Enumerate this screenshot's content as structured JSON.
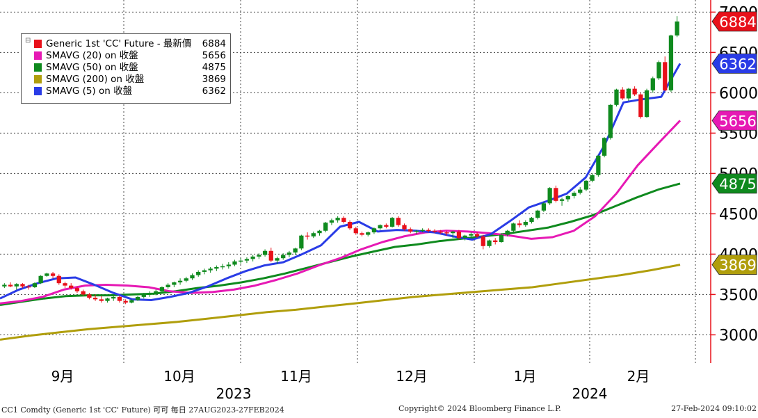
{
  "chart_data": {
    "type": "candlestick",
    "ylim": [
      2650,
      7150
    ],
    "y_ticks": [
      3000,
      3500,
      4000,
      4500,
      5000,
      5500,
      6000,
      6500,
      7000
    ],
    "y_tick_labels": [
      "3000",
      "3500",
      "4000",
      "4500",
      "5000",
      "5500",
      "6000",
      "6500",
      "7000"
    ],
    "x_month_labels": [
      "9月",
      "10月",
      "11月",
      "12月",
      "1月",
      "2月"
    ],
    "x_year_labels": [
      "2023",
      "2024"
    ],
    "grid": true,
    "legend_position": "top-left",
    "series": [
      {
        "name": "Generic 1st 'CC' Future - 最新價",
        "color": "#e8101a",
        "last_value": "6884",
        "candles": [
          [
            3600,
            3640,
            3580,
            3620
          ],
          [
            3620,
            3650,
            3590,
            3600
          ],
          [
            3600,
            3640,
            3560,
            3630
          ],
          [
            3630,
            3640,
            3580,
            3600
          ],
          [
            3600,
            3620,
            3560,
            3590
          ],
          [
            3590,
            3650,
            3580,
            3640
          ],
          [
            3640,
            3740,
            3630,
            3730
          ],
          [
            3730,
            3770,
            3720,
            3760
          ],
          [
            3760,
            3780,
            3700,
            3730
          ],
          [
            3730,
            3750,
            3620,
            3640
          ],
          [
            3640,
            3660,
            3580,
            3610
          ],
          [
            3610,
            3640,
            3560,
            3580
          ],
          [
            3580,
            3600,
            3520,
            3540
          ],
          [
            3540,
            3560,
            3480,
            3500
          ],
          [
            3500,
            3520,
            3440,
            3460
          ],
          [
            3460,
            3500,
            3420,
            3440
          ],
          [
            3440,
            3480,
            3400,
            3420
          ],
          [
            3420,
            3460,
            3400,
            3450
          ],
          [
            3450,
            3490,
            3420,
            3470
          ],
          [
            3470,
            3490,
            3400,
            3420
          ],
          [
            3420,
            3440,
            3380,
            3400
          ],
          [
            3400,
            3440,
            3390,
            3430
          ],
          [
            3430,
            3480,
            3420,
            3470
          ],
          [
            3470,
            3520,
            3450,
            3500
          ],
          [
            3500,
            3540,
            3470,
            3520
          ],
          [
            3520,
            3560,
            3490,
            3540
          ],
          [
            3540,
            3600,
            3520,
            3590
          ],
          [
            3590,
            3640,
            3570,
            3620
          ],
          [
            3620,
            3660,
            3590,
            3650
          ],
          [
            3650,
            3700,
            3620,
            3670
          ],
          [
            3670,
            3720,
            3650,
            3700
          ],
          [
            3700,
            3760,
            3680,
            3740
          ],
          [
            3740,
            3800,
            3720,
            3780
          ],
          [
            3780,
            3820,
            3750,
            3800
          ],
          [
            3800,
            3840,
            3770,
            3820
          ],
          [
            3820,
            3860,
            3790,
            3840
          ],
          [
            3840,
            3880,
            3810,
            3850
          ],
          [
            3850,
            3900,
            3820,
            3870
          ],
          [
            3870,
            3930,
            3850,
            3910
          ],
          [
            3910,
            3950,
            3880,
            3920
          ],
          [
            3920,
            3960,
            3890,
            3940
          ],
          [
            3940,
            3990,
            3910,
            3970
          ],
          [
            3970,
            4010,
            3940,
            3990
          ],
          [
            3990,
            4060,
            3970,
            4040
          ],
          [
            4040,
            4080,
            3900,
            3920
          ],
          [
            3920,
            3970,
            3880,
            3950
          ],
          [
            3950,
            4010,
            3930,
            3990
          ],
          [
            3990,
            4040,
            3960,
            4020
          ],
          [
            4020,
            4080,
            3990,
            4070
          ],
          [
            4070,
            4240,
            4050,
            4230
          ],
          [
            4230,
            4270,
            4180,
            4220
          ],
          [
            4220,
            4280,
            4200,
            4260
          ],
          [
            4260,
            4300,
            4230,
            4290
          ],
          [
            4290,
            4400,
            4270,
            4390
          ],
          [
            4390,
            4440,
            4360,
            4420
          ],
          [
            4420,
            4470,
            4390,
            4450
          ],
          [
            4450,
            4470,
            4380,
            4400
          ],
          [
            4400,
            4420,
            4300,
            4320
          ],
          [
            4320,
            4340,
            4240,
            4260
          ],
          [
            4260,
            4280,
            4220,
            4240
          ],
          [
            4240,
            4280,
            4220,
            4270
          ],
          [
            4270,
            4330,
            4250,
            4320
          ],
          [
            4320,
            4370,
            4300,
            4360
          ],
          [
            4360,
            4380,
            4320,
            4340
          ],
          [
            4340,
            4460,
            4330,
            4450
          ],
          [
            4450,
            4470,
            4340,
            4360
          ],
          [
            4360,
            4380,
            4290,
            4310
          ],
          [
            4310,
            4330,
            4260,
            4280
          ],
          [
            4280,
            4300,
            4250,
            4290
          ],
          [
            4290,
            4320,
            4270,
            4300
          ],
          [
            4300,
            4320,
            4270,
            4290
          ],
          [
            4290,
            4310,
            4260,
            4280
          ],
          [
            4280,
            4300,
            4250,
            4270
          ],
          [
            4270,
            4290,
            4230,
            4260
          ],
          [
            4260,
            4290,
            4200,
            4280
          ],
          [
            4280,
            4300,
            4180,
            4200
          ],
          [
            4200,
            4240,
            4170,
            4230
          ],
          [
            4230,
            4270,
            4200,
            4250
          ],
          [
            4250,
            4270,
            4200,
            4220
          ],
          [
            4220,
            4240,
            4060,
            4100
          ],
          [
            4100,
            4180,
            4080,
            4170
          ],
          [
            4170,
            4200,
            4120,
            4150
          ],
          [
            4150,
            4260,
            4140,
            4240
          ],
          [
            4240,
            4300,
            4220,
            4290
          ],
          [
            4290,
            4390,
            4270,
            4380
          ],
          [
            4380,
            4420,
            4330,
            4360
          ],
          [
            4360,
            4420,
            4340,
            4400
          ],
          [
            4400,
            4460,
            4380,
            4450
          ],
          [
            4450,
            4550,
            4430,
            4540
          ],
          [
            4540,
            4650,
            4520,
            4630
          ],
          [
            4630,
            4830,
            4610,
            4820
          ],
          [
            4820,
            4850,
            4640,
            4660
          ],
          [
            4660,
            4700,
            4600,
            4680
          ],
          [
            4680,
            4730,
            4650,
            4720
          ],
          [
            4720,
            4780,
            4690,
            4760
          ],
          [
            4760,
            4830,
            4740,
            4800
          ],
          [
            4800,
            4920,
            4780,
            4910
          ],
          [
            4910,
            5000,
            4890,
            4980
          ],
          [
            4980,
            5230,
            4960,
            5220
          ],
          [
            5220,
            5450,
            5200,
            5440
          ],
          [
            5440,
            5860,
            5420,
            5850
          ],
          [
            5850,
            6050,
            5830,
            6040
          ],
          [
            6040,
            6070,
            5910,
            5930
          ],
          [
            5930,
            6060,
            5900,
            6050
          ],
          [
            6050,
            6080,
            5960,
            5980
          ],
          [
            5980,
            6000,
            5680,
            5700
          ],
          [
            5700,
            6050,
            5690,
            6030
          ],
          [
            6030,
            6200,
            6000,
            6180
          ],
          [
            6180,
            6400,
            6160,
            6380
          ],
          [
            6380,
            6450,
            6020,
            6030
          ],
          [
            6030,
            6720,
            6010,
            6710
          ],
          [
            6710,
            6950,
            6690,
            6884
          ]
        ]
      },
      {
        "name": "SMAVG (20)  on 收盤",
        "color": "#e619b4",
        "last_value": "5656",
        "points": [
          3390,
          3420,
          3470,
          3560,
          3610,
          3620,
          3610,
          3590,
          3540,
          3520,
          3530,
          3560,
          3610,
          3680,
          3760,
          3860,
          3950,
          4060,
          4150,
          4220,
          4270,
          4290,
          4280,
          4260,
          4230,
          4190,
          4210,
          4290,
          4470,
          4750,
          5100,
          5380,
          5656
        ]
      },
      {
        "name": "SMAVG (50)  on 收盤",
        "color": "#0f8a1e",
        "last_value": "4875",
        "points": [
          3370,
          3410,
          3450,
          3480,
          3490,
          3490,
          3500,
          3510,
          3540,
          3580,
          3610,
          3650,
          3700,
          3760,
          3830,
          3900,
          3970,
          4030,
          4090,
          4120,
          4160,
          4190,
          4220,
          4250,
          4290,
          4330,
          4400,
          4480,
          4590,
          4700,
          4800,
          4875
        ]
      },
      {
        "name": "SMAVG (200)  on 收盤",
        "color": "#b09e0c",
        "last_value": "3869",
        "points": [
          2940,
          2990,
          3030,
          3070,
          3100,
          3130,
          3160,
          3200,
          3240,
          3280,
          3310,
          3350,
          3390,
          3430,
          3470,
          3500,
          3530,
          3560,
          3590,
          3640,
          3690,
          3740,
          3800,
          3869
        ]
      },
      {
        "name": "SMAVG (5)  on 收盤",
        "color": "#2a3ce6",
        "last_value": "6362",
        "points": [
          3450,
          3560,
          3640,
          3700,
          3710,
          3620,
          3520,
          3440,
          3430,
          3470,
          3520,
          3600,
          3700,
          3790,
          3860,
          3900,
          4000,
          4110,
          4340,
          4400,
          4280,
          4300,
          4290,
          4270,
          4220,
          4180,
          4250,
          4410,
          4580,
          4660,
          4750,
          4950,
          5350,
          5880,
          5920,
          5950,
          6362
        ]
      }
    ]
  },
  "footer": {
    "left": "CC1 Comdty (Generic 1st 'CC' Future) 可可  每日 27AUG2023-27FEB2024",
    "center": "Copyright© 2024 Bloomberg Finance L.P.",
    "right": "27-Feb-2024 09:10:02"
  }
}
